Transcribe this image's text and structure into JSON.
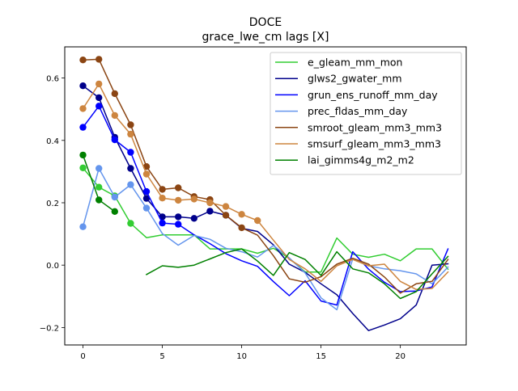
{
  "chart_data": {
    "type": "line",
    "title": "DOCE",
    "subtitle": "grace_lwe_cm lags [X]",
    "xlabel": "",
    "ylabel": "",
    "xlim": [
      -1.15,
      24.15
    ],
    "ylim": [
      -0.256,
      0.7
    ],
    "x_ticks": [
      0,
      5,
      10,
      15,
      20
    ],
    "y_ticks": [
      -0.2,
      0.0,
      0.2,
      0.4,
      0.6
    ],
    "x_tick_labels": [
      "0",
      "5",
      "10",
      "15",
      "20"
    ],
    "y_tick_labels": [
      "−0.2",
      "0.0",
      "0.2",
      "0.4",
      "0.6"
    ],
    "grid": false,
    "legend_position": "upper right",
    "x": [
      0,
      1,
      2,
      3,
      4,
      5,
      6,
      7,
      8,
      9,
      10,
      11,
      12,
      13,
      14,
      15,
      16,
      17,
      18,
      19,
      20,
      21,
      22,
      23
    ],
    "series": [
      {
        "name": "e_gleam_mm_mon",
        "color": "#32cd32",
        "values": [
          0.312,
          0.25,
          0.222,
          0.134,
          0.088,
          0.097,
          0.097,
          0.097,
          0.052,
          0.052,
          0.052,
          0.038,
          0.054,
          0.022,
          -0.022,
          -0.022,
          0.087,
          0.035,
          0.025,
          0.035,
          0.014,
          0.052,
          0.052,
          -0.013
        ],
        "markers": [
          0,
          1,
          2,
          3
        ]
      },
      {
        "name": "glws2_gwater_mm",
        "color": "#00008b",
        "values": [
          0.575,
          0.537,
          0.41,
          0.31,
          0.214,
          0.155,
          0.155,
          0.15,
          0.173,
          0.16,
          0.118,
          0.108,
          0.065,
          0.003,
          -0.023,
          -0.06,
          -0.095,
          -0.155,
          -0.21,
          -0.192,
          -0.172,
          -0.128,
          0.0,
          0.004
        ],
        "markers": [
          0,
          1,
          2,
          3,
          4,
          5,
          6,
          7,
          8,
          9
        ]
      },
      {
        "name": "grun_ens_runoff_mm_day",
        "color": "#0000ff",
        "values": [
          0.442,
          0.51,
          0.402,
          0.362,
          0.236,
          0.135,
          0.131,
          0.097,
          0.069,
          0.037,
          0.014,
          -0.004,
          -0.053,
          -0.098,
          -0.05,
          -0.115,
          -0.128,
          0.043,
          -0.013,
          -0.055,
          -0.085,
          -0.083,
          -0.07,
          0.052
        ],
        "markers": [
          0,
          1,
          2,
          3,
          4,
          5,
          6
        ]
      },
      {
        "name": "prec_fldas_mm_day",
        "color": "#6495ed",
        "values": [
          0.123,
          0.31,
          0.218,
          0.258,
          0.183,
          0.101,
          0.064,
          0.095,
          0.083,
          0.054,
          0.043,
          0.026,
          0.063,
          0.023,
          -0.025,
          -0.105,
          -0.143,
          0.02,
          -0.002,
          -0.012,
          -0.018,
          -0.028,
          -0.06,
          -0.006
        ],
        "markers": [
          0,
          1,
          2,
          3,
          4
        ]
      },
      {
        "name": "smroot_gleam_mm3_mm3",
        "color": "#8b4513",
        "values": [
          0.658,
          0.66,
          0.55,
          0.45,
          0.316,
          0.243,
          0.248,
          0.22,
          0.21,
          0.16,
          0.12,
          0.096,
          0.03,
          -0.044,
          -0.055,
          -0.037,
          0.003,
          0.022,
          0.003,
          -0.038,
          -0.09,
          -0.06,
          -0.052,
          0.018
        ],
        "markers": [
          0,
          1,
          2,
          3,
          4,
          5,
          6,
          7,
          8,
          9,
          10
        ]
      },
      {
        "name": "smsurf_gleam_mm3_mm3",
        "color": "#cd853f",
        "values": [
          0.502,
          0.581,
          0.48,
          0.42,
          0.292,
          0.215,
          0.208,
          0.212,
          0.2,
          0.188,
          0.163,
          0.143,
          0.08,
          0.018,
          -0.012,
          -0.052,
          -0.002,
          0.018,
          -0.002,
          0.003,
          -0.052,
          -0.078,
          -0.075,
          -0.022
        ],
        "markers": [
          0,
          1,
          2,
          3,
          4,
          5,
          6,
          7,
          8,
          9,
          10,
          11
        ]
      },
      {
        "name": "lai_gimms4g_m2_m2",
        "color": "#008000",
        "values": [
          0.353,
          0.209,
          0.172,
          null,
          -0.03,
          -0.002,
          -0.007,
          0.0,
          0.02,
          0.04,
          0.052,
          0.013,
          -0.033,
          0.04,
          0.018,
          -0.033,
          0.043,
          -0.012,
          -0.025,
          -0.06,
          -0.107,
          -0.085,
          -0.028,
          0.028
        ],
        "markers": [
          0,
          1,
          2
        ]
      }
    ]
  }
}
